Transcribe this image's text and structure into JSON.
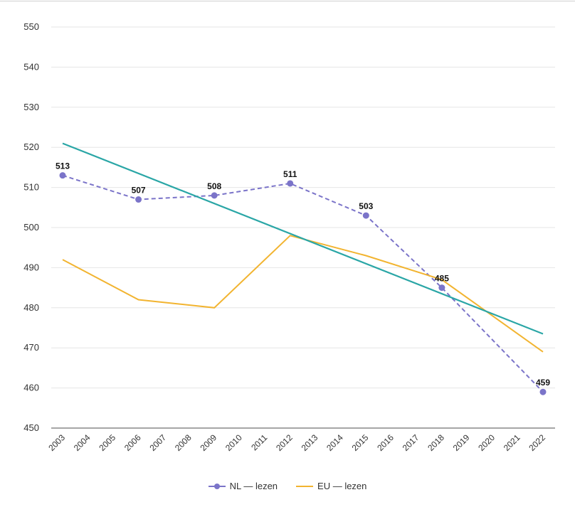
{
  "chart_data": {
    "type": "line",
    "x": [
      "2003",
      "2004",
      "2005",
      "2006",
      "2007",
      "2008",
      "2009",
      "2010",
      "2011",
      "2012",
      "2013",
      "2014",
      "2015",
      "2016",
      "2017",
      "2018",
      "2019",
      "2020",
      "2021",
      "2022"
    ],
    "ylim": [
      450,
      550
    ],
    "yticks": [
      450,
      460,
      470,
      480,
      490,
      500,
      510,
      520,
      530,
      540,
      550
    ],
    "grid": true,
    "legend_position": "bottom",
    "series": [
      {
        "name": "NL — lezen",
        "color": "#7b74c9",
        "style": "dashed-markers",
        "points": [
          {
            "x": "2003",
            "y": 513,
            "label": "513"
          },
          {
            "x": "2006",
            "y": 507,
            "label": "507"
          },
          {
            "x": "2009",
            "y": 508,
            "label": "508"
          },
          {
            "x": "2012",
            "y": 511,
            "label": "511"
          },
          {
            "x": "2015",
            "y": 503,
            "label": "503"
          },
          {
            "x": "2018",
            "y": 485,
            "label": "485"
          },
          {
            "x": "2022",
            "y": 459,
            "label": "459"
          }
        ]
      },
      {
        "name": "EU — lezen",
        "color": "#f2b430",
        "style": "solid",
        "points": [
          {
            "x": "2003",
            "y": 492
          },
          {
            "x": "2006",
            "y": 482
          },
          {
            "x": "2009",
            "y": 480
          },
          {
            "x": "2012",
            "y": 498
          },
          {
            "x": "2015",
            "y": 493
          },
          {
            "x": "2018",
            "y": 487
          },
          {
            "x": "2022",
            "y": 469
          }
        ]
      },
      {
        "name": "",
        "color": "#2aa6a6",
        "style": "trendline",
        "points": [
          {
            "x": "2003",
            "y": 521
          },
          {
            "x": "2022",
            "y": 473.5
          }
        ]
      }
    ]
  },
  "legend": [
    {
      "label": "NL — lezen",
      "color": "#7b74c9",
      "marker": "circle-line"
    },
    {
      "label": "EU — lezen",
      "color": "#f2b430",
      "marker": "line"
    }
  ]
}
